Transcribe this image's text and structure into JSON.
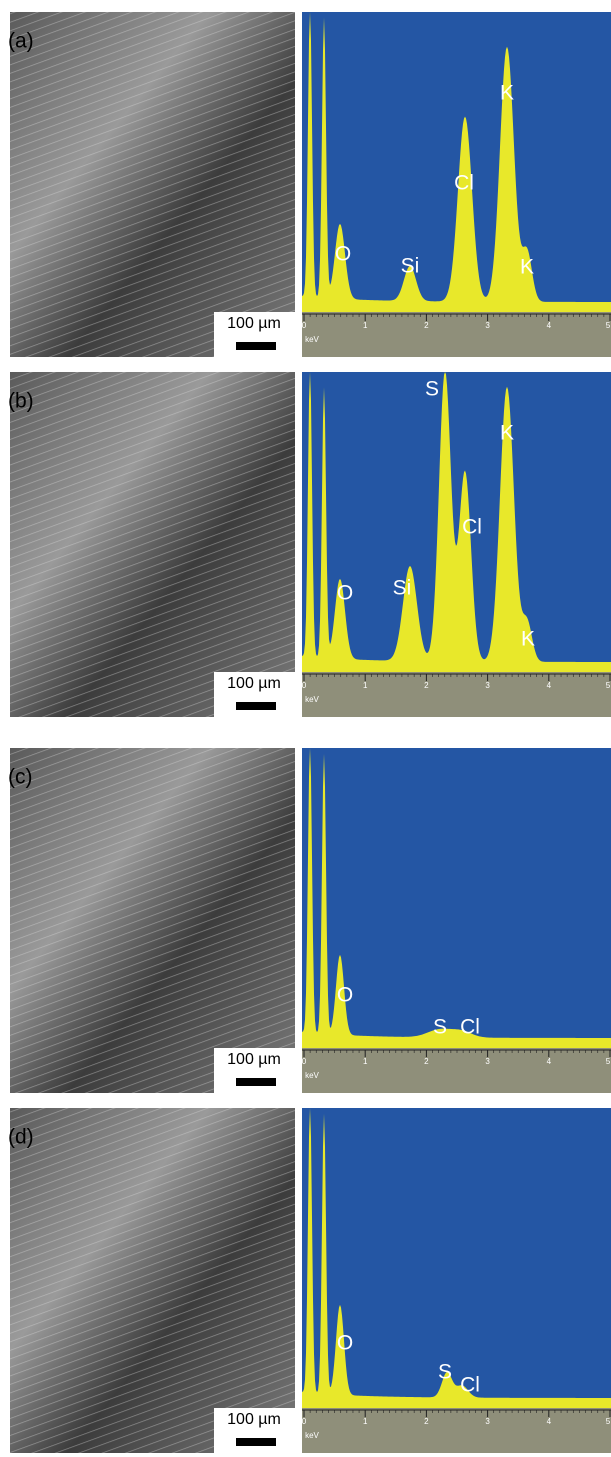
{
  "panels": [
    {
      "label": "(a)",
      "scale_bar": "100 µm",
      "spectrum": {
        "x_unit": "keV",
        "xticks": [
          0,
          1,
          2,
          3,
          4,
          5
        ],
        "peaks": [
          "O",
          "Si",
          "Cl",
          "K",
          "K"
        ]
      }
    },
    {
      "label": "(b)",
      "scale_bar": "100 µm",
      "spectrum": {
        "x_unit": "keV",
        "xticks": [
          0,
          1,
          2,
          3,
          4,
          5
        ],
        "peaks": [
          "S",
          "K",
          "Cl",
          "Si",
          "O",
          "K"
        ]
      }
    },
    {
      "label": "(c)",
      "scale_bar": "100 µm",
      "spectrum": {
        "x_unit": "keV",
        "xticks": [
          0,
          1,
          2,
          3,
          4,
          5
        ],
        "peaks": [
          "O",
          "S",
          "Cl"
        ]
      }
    },
    {
      "label": "(d)",
      "scale_bar": "100 µm",
      "spectrum": {
        "x_unit": "keV",
        "xticks": [
          0,
          1,
          2,
          3,
          4,
          5
        ],
        "peaks": [
          "O",
          "S",
          "Cl"
        ]
      }
    }
  ]
}
